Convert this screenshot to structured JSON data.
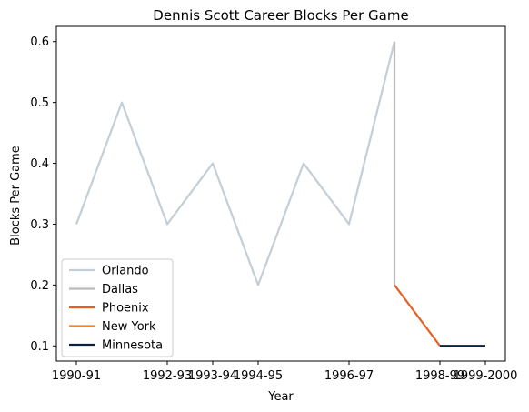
{
  "chart_data": {
    "type": "line",
    "title": "Dennis Scott  Career Blocks Per Game",
    "xlabel": "Year",
    "ylabel": "Blocks Per Game",
    "x_tick_labels": [
      "1990-91",
      "1992-93",
      "1993-94",
      "1994-95",
      "1996-97",
      "1998-99",
      "1999-2000"
    ],
    "y_ticks": [
      0.1,
      0.2,
      0.3,
      0.4,
      0.5,
      0.6
    ],
    "y_tick_labels": [
      "0.1",
      "0.2",
      "0.3",
      "0.4",
      "0.5",
      "0.6"
    ],
    "ylim": [
      0.075,
      0.625
    ],
    "grid": false,
    "legend_position": "lower left",
    "series": [
      {
        "name": "Orlando",
        "color": "#c4ced4",
        "x": [
          "1990-91",
          "1991-92",
          "1992-93",
          "1993-94",
          "1994-95",
          "1995-96",
          "1996-97",
          "1997-98"
        ],
        "values": [
          0.3,
          0.5,
          0.3,
          0.4,
          0.2,
          0.4,
          0.3,
          0.6
        ]
      },
      {
        "name": "Dallas",
        "color": "#bbbbbb",
        "x": [
          "1997-98",
          "1997-98"
        ],
        "values": [
          0.6,
          0.2
        ]
      },
      {
        "name": "Phoenix",
        "color": "#e56020",
        "x": [
          "1997-98",
          "1998-99"
        ],
        "values": [
          0.2,
          0.1
        ]
      },
      {
        "name": "New York",
        "color": "#f58426",
        "x": [
          "1998-99",
          "1998-99"
        ],
        "values": [
          0.1,
          0.1
        ]
      },
      {
        "name": "Minnesota",
        "color": "#0c2340",
        "x": [
          "1998-99",
          "1999-2000"
        ],
        "values": [
          0.1,
          0.1
        ]
      }
    ],
    "x_categories": [
      "1990-91",
      "1991-92",
      "1992-93",
      "1993-94",
      "1994-95",
      "1995-96",
      "1996-97",
      "1997-98",
      "1998-99",
      "1999-2000"
    ]
  }
}
